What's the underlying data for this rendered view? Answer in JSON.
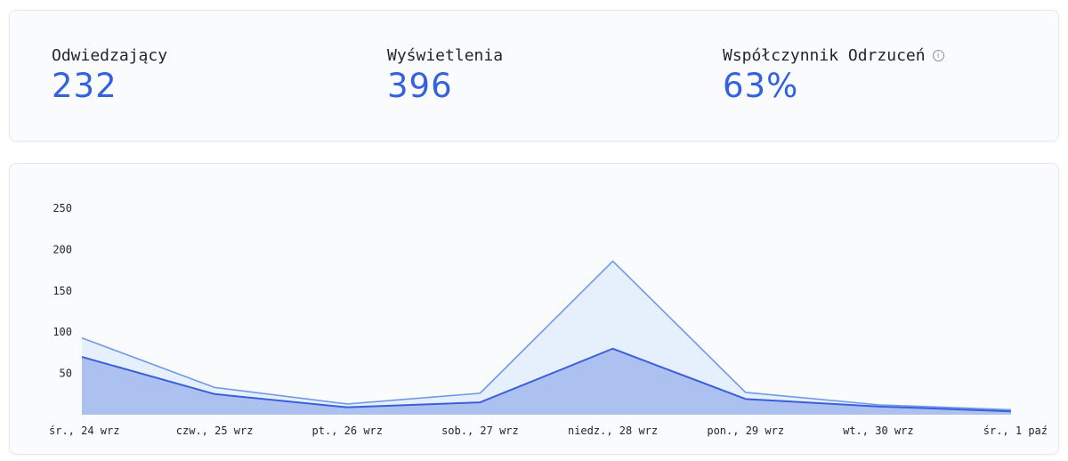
{
  "stats": [
    {
      "label": "Odwiedzający",
      "value": "232"
    },
    {
      "label": "Wyświetlenia",
      "value": "396"
    },
    {
      "label": "Współczynnik Odrzuceń",
      "value": "63%",
      "icon": "info-icon"
    }
  ],
  "colors": {
    "accent": "#3461dc",
    "views_line": "#6f9ae8",
    "views_fill": "#e6effc",
    "visitors_line": "#3a5fd9",
    "visitors_fill": "#adc1f1"
  },
  "chart_data": {
    "type": "area",
    "categories": [
      "śr., 24 wrz",
      "czw., 25 wrz",
      "pt., 26 wrz",
      "sob., 27 wrz",
      "niedz., 28 wrz",
      "pon., 29 wrz",
      "wt., 30 wrz",
      "śr., 1 paź"
    ],
    "series": [
      {
        "values": [
          93,
          33,
          13,
          26,
          186,
          27,
          12,
          6
        ]
      },
      {
        "values": [
          70,
          25,
          9,
          15,
          80,
          19,
          10,
          4
        ]
      }
    ],
    "yticks": [
      "50",
      "100",
      "150",
      "200",
      "250"
    ],
    "ylim": [
      0,
      250
    ],
    "grid": false,
    "legend": "none"
  }
}
